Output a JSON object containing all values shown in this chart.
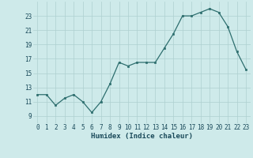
{
  "x": [
    0,
    1,
    2,
    3,
    4,
    5,
    6,
    7,
    8,
    9,
    10,
    11,
    12,
    13,
    14,
    15,
    16,
    17,
    18,
    19,
    20,
    21,
    22,
    23
  ],
  "y": [
    12.0,
    12.0,
    10.5,
    11.5,
    12.0,
    11.0,
    9.5,
    11.0,
    13.5,
    16.5,
    16.0,
    16.5,
    16.5,
    16.5,
    18.5,
    20.5,
    23.0,
    23.0,
    23.5,
    24.0,
    23.5,
    21.5,
    18.0,
    15.5
  ],
  "line_color": "#2d6e6e",
  "marker": "s",
  "markersize": 2.0,
  "linewidth": 0.9,
  "bg_color": "#ceeaea",
  "grid_color": "#aed0d0",
  "xlabel": "Humidex (Indice chaleur)",
  "xlabel_fontsize": 6.5,
  "xlabel_color": "#1a4a5a",
  "tick_fontsize": 5.5,
  "tick_color": "#1a4a5a",
  "yticks": [
    9,
    11,
    13,
    15,
    17,
    19,
    21,
    23
  ],
  "xticks": [
    0,
    1,
    2,
    3,
    4,
    5,
    6,
    7,
    8,
    9,
    10,
    11,
    12,
    13,
    14,
    15,
    16,
    17,
    18,
    19,
    20,
    21,
    22,
    23
  ],
  "ylim": [
    8.0,
    25.0
  ],
  "xlim": [
    -0.5,
    23.5
  ]
}
